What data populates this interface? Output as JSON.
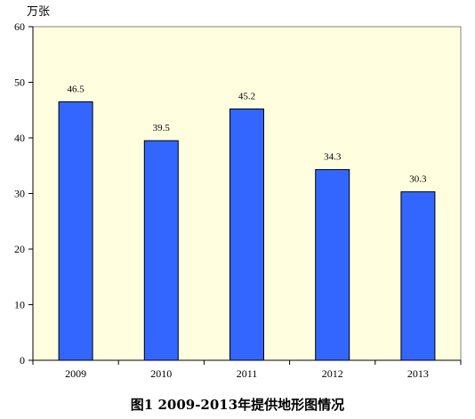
{
  "chart_data": {
    "type": "bar",
    "title": "图1  2009-2013年提供地形图情况",
    "ylabel": "万张",
    "xlabel": "",
    "categories": [
      "2009",
      "2010",
      "2011",
      "2012",
      "2013"
    ],
    "values": [
      46.5,
      39.5,
      45.2,
      34.3,
      30.3
    ],
    "value_labels": [
      "46.5",
      "39.5",
      "45.2",
      "34.3",
      "30.3"
    ],
    "ylim": [
      0,
      60
    ],
    "yticks": [
      0,
      10,
      20,
      30,
      40,
      50,
      60
    ],
    "ytick_labels": [
      "0",
      "10",
      "20",
      "30",
      "40",
      "50",
      "60"
    ],
    "grid": false,
    "legend": "none",
    "colors": {
      "bar_fill": "#3366FF",
      "bar_stroke": "#000000",
      "plot_background": "#FFFFE0",
      "axis": "#000000"
    }
  }
}
